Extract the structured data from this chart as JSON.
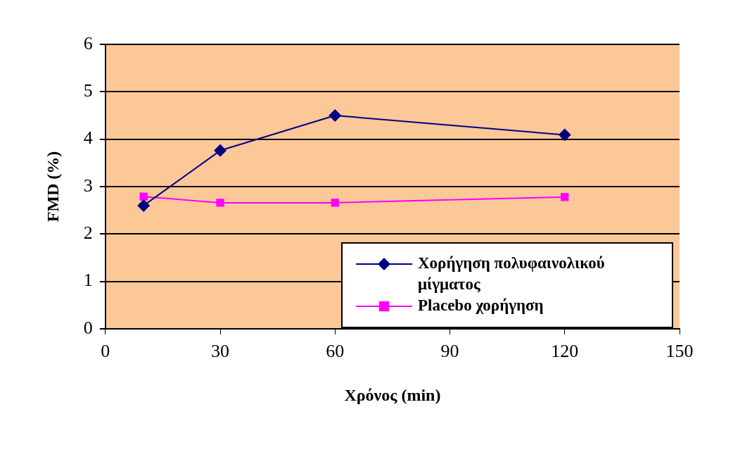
{
  "chart_data": {
    "type": "line",
    "xlabel": "Χρόνος (min)",
    "ylabel": "FMD (%)",
    "x": [
      10,
      30,
      60,
      120
    ],
    "series": [
      {
        "name": "Χορήγηση πολυφαινολικού μίγματος",
        "color": "#000080",
        "values": [
          2.6,
          3.76,
          4.5,
          4.09
        ],
        "marker": "diamond"
      },
      {
        "name": "Placebo χορήγηση",
        "color": "#ff00ff",
        "values": [
          2.79,
          2.66,
          2.66,
          2.78
        ],
        "marker": "square"
      }
    ],
    "xlim": [
      0,
      150
    ],
    "xticks": [
      0,
      30,
      60,
      90,
      120,
      150
    ],
    "ylim": [
      0,
      6
    ],
    "yticks": [
      0,
      1,
      2,
      3,
      4,
      5,
      6
    ],
    "grid": "y",
    "legend": "bottom right"
  }
}
